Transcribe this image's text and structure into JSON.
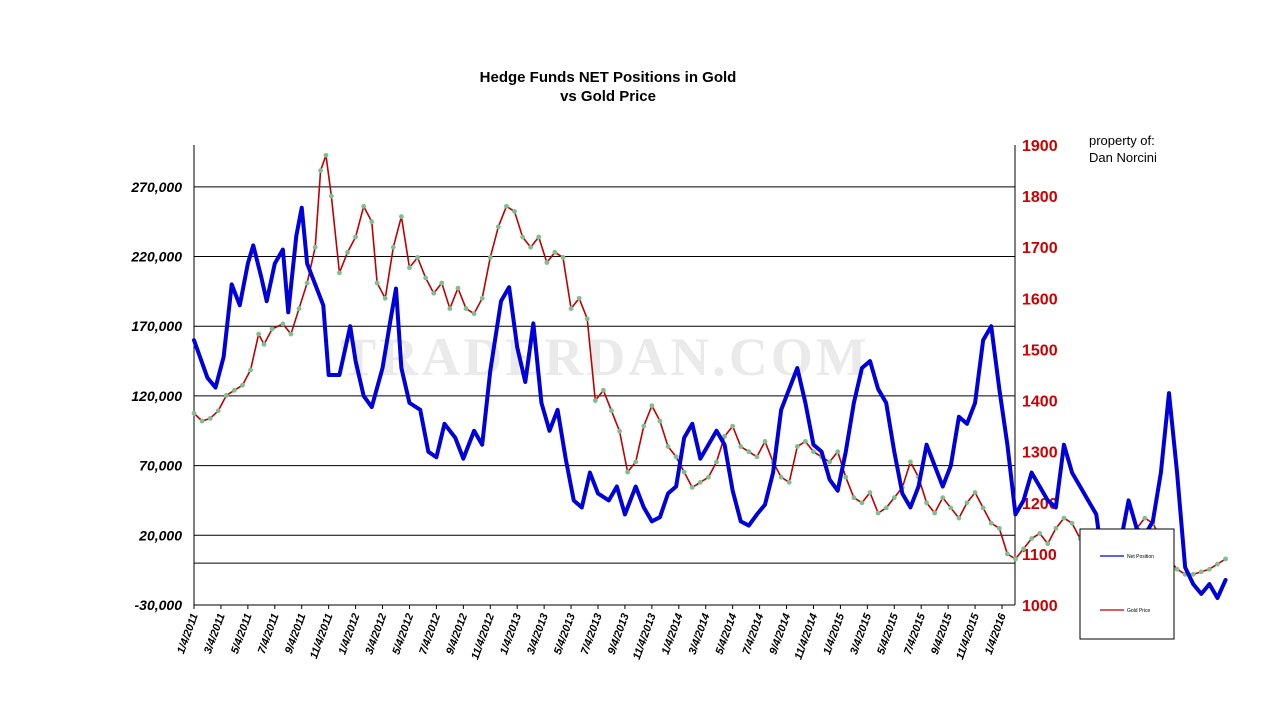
{
  "chart_data": {
    "type": "line",
    "title": "Hedge Funds NET Positions in Gold",
    "subtitle": "vs Gold Price",
    "watermark": "TRADERDAN.COM",
    "note_line1": "property of:",
    "note_line2": "Dan Norcini",
    "x_tick_labels": [
      "1/4/2011",
      "3/4/2011",
      "5/4/2011",
      "7/4/2011",
      "9/4/2011",
      "11/4/2011",
      "1/4/2012",
      "3/4/2012",
      "5/4/2012",
      "7/4/2012",
      "9/4/2012",
      "11/4/2012",
      "1/4/2013",
      "3/4/2013",
      "5/4/2013",
      "7/4/2013",
      "9/4/2013",
      "11/4/2013",
      "1/4/2014",
      "3/4/2014",
      "5/4/2014",
      "7/4/2014",
      "9/4/2014",
      "11/4/2014",
      "1/4/2015",
      "3/4/2015",
      "5/4/2015",
      "7/4/2015",
      "9/4/2015",
      "11/4/2015",
      "1/4/2016"
    ],
    "y_left": {
      "ticks": [
        "270,000",
        "220,000",
        "170,000",
        "120,000",
        "70,000",
        "20,000",
        "-30,000"
      ],
      "tick_values": [
        270000,
        220000,
        170000,
        120000,
        70000,
        20000,
        -30000
      ],
      "range": [
        -30000,
        300000
      ]
    },
    "y_right": {
      "ticks": [
        "1900",
        "1800",
        "1700",
        "1600",
        "1500",
        "1400",
        "1300",
        "1200",
        "1100",
        "1000"
      ],
      "tick_values": [
        1900,
        1800,
        1700,
        1600,
        1500,
        1400,
        1300,
        1200,
        1100,
        1000
      ],
      "range": [
        1000,
        1900
      ]
    },
    "gridlines_left": [
      270000,
      220000,
      170000,
      120000,
      70000,
      20000,
      0
    ],
    "series": [
      {
        "name": "Net Position",
        "color": "#0000dd",
        "axis": "left",
        "values": [
          [
            0,
            160000
          ],
          [
            0.5,
            133000
          ],
          [
            0.8,
            126000
          ],
          [
            1.1,
            148000
          ],
          [
            1.4,
            200000
          ],
          [
            1.7,
            185000
          ],
          [
            2.0,
            215000
          ],
          [
            2.2,
            228000
          ],
          [
            2.5,
            205000
          ],
          [
            2.7,
            188000
          ],
          [
            3.0,
            215000
          ],
          [
            3.3,
            225000
          ],
          [
            3.5,
            180000
          ],
          [
            3.8,
            235000
          ],
          [
            4.0,
            255000
          ],
          [
            4.2,
            215000
          ],
          [
            4.5,
            200000
          ],
          [
            4.8,
            185000
          ],
          [
            5.0,
            135000
          ],
          [
            5.4,
            135000
          ],
          [
            5.8,
            170000
          ],
          [
            6.0,
            145000
          ],
          [
            6.3,
            120000
          ],
          [
            6.6,
            112000
          ],
          [
            7.0,
            140000
          ],
          [
            7.3,
            175000
          ],
          [
            7.5,
            197000
          ],
          [
            7.7,
            140000
          ],
          [
            8.0,
            115000
          ],
          [
            8.4,
            110000
          ],
          [
            8.7,
            80000
          ],
          [
            9.0,
            76000
          ],
          [
            9.3,
            100000
          ],
          [
            9.7,
            90000
          ],
          [
            10.0,
            75000
          ],
          [
            10.4,
            95000
          ],
          [
            10.7,
            85000
          ],
          [
            11.0,
            138000
          ],
          [
            11.4,
            188000
          ],
          [
            11.7,
            198000
          ],
          [
            12.0,
            155000
          ],
          [
            12.3,
            130000
          ],
          [
            12.6,
            172000
          ],
          [
            12.9,
            115000
          ],
          [
            13.2,
            95000
          ],
          [
            13.5,
            110000
          ],
          [
            13.8,
            75000
          ],
          [
            14.1,
            45000
          ],
          [
            14.4,
            40000
          ],
          [
            14.7,
            65000
          ],
          [
            15.0,
            50000
          ],
          [
            15.4,
            45000
          ],
          [
            15.7,
            55000
          ],
          [
            16.0,
            35000
          ],
          [
            16.4,
            55000
          ],
          [
            16.7,
            40000
          ],
          [
            17.0,
            30000
          ],
          [
            17.3,
            33000
          ],
          [
            17.6,
            50000
          ],
          [
            17.9,
            55000
          ],
          [
            18.2,
            90000
          ],
          [
            18.5,
            100000
          ],
          [
            18.8,
            75000
          ],
          [
            19.1,
            85000
          ],
          [
            19.4,
            95000
          ],
          [
            19.7,
            85000
          ],
          [
            20.0,
            52000
          ],
          [
            20.3,
            30000
          ],
          [
            20.6,
            27000
          ],
          [
            20.9,
            35000
          ],
          [
            21.2,
            42000
          ],
          [
            21.5,
            65000
          ],
          [
            21.8,
            110000
          ],
          [
            22.1,
            125000
          ],
          [
            22.4,
            140000
          ],
          [
            22.7,
            115000
          ],
          [
            23.0,
            85000
          ],
          [
            23.3,
            80000
          ],
          [
            23.6,
            60000
          ],
          [
            23.9,
            52000
          ],
          [
            24.2,
            80000
          ],
          [
            24.5,
            115000
          ],
          [
            24.8,
            140000
          ],
          [
            25.1,
            145000
          ],
          [
            25.4,
            125000
          ],
          [
            25.7,
            115000
          ],
          [
            26.0,
            80000
          ],
          [
            26.3,
            50000
          ],
          [
            26.6,
            40000
          ],
          [
            26.9,
            55000
          ],
          [
            27.2,
            85000
          ],
          [
            27.5,
            70000
          ],
          [
            27.8,
            55000
          ],
          [
            28.1,
            70000
          ],
          [
            28.4,
            105000
          ],
          [
            28.7,
            100000
          ],
          [
            29.0,
            115000
          ],
          [
            29.3,
            160000
          ],
          [
            29.6,
            170000
          ],
          [
            29.9,
            125000
          ],
          [
            30.2,
            85000
          ],
          [
            30.5,
            35000
          ],
          [
            30.8,
            45000
          ],
          [
            31.1,
            65000
          ],
          [
            31.4,
            55000
          ],
          [
            31.7,
            45000
          ],
          [
            32.0,
            40000
          ],
          [
            32.3,
            85000
          ],
          [
            32.6,
            65000
          ],
          [
            32.9,
            55000
          ],
          [
            33.2,
            45000
          ],
          [
            33.5,
            35000
          ],
          [
            33.8,
            -8000
          ],
          [
            34.1,
            -3000
          ],
          [
            34.4,
            15000
          ],
          [
            34.7,
            45000
          ],
          [
            35.0,
            25000
          ],
          [
            35.3,
            20000
          ],
          [
            35.6,
            30000
          ],
          [
            35.9,
            65000
          ],
          [
            36.2,
            122000
          ],
          [
            36.5,
            65000
          ],
          [
            36.8,
            -3000
          ],
          [
            37.1,
            -15000
          ],
          [
            37.4,
            -22000
          ],
          [
            37.7,
            -15000
          ],
          [
            38.0,
            -25000
          ],
          [
            38.3,
            -12000
          ]
        ]
      },
      {
        "name": "Gold Price",
        "color": "#c00000",
        "axis": "right",
        "values": [
          [
            0,
            1375
          ],
          [
            0.3,
            1360
          ],
          [
            0.6,
            1365
          ],
          [
            0.9,
            1380
          ],
          [
            1.2,
            1410
          ],
          [
            1.5,
            1420
          ],
          [
            1.8,
            1430
          ],
          [
            2.1,
            1460
          ],
          [
            2.4,
            1530
          ],
          [
            2.6,
            1510
          ],
          [
            2.9,
            1540
          ],
          [
            3.3,
            1550
          ],
          [
            3.6,
            1530
          ],
          [
            3.9,
            1580
          ],
          [
            4.2,
            1630
          ],
          [
            4.5,
            1700
          ],
          [
            4.7,
            1850
          ],
          [
            4.9,
            1880
          ],
          [
            5.1,
            1800
          ],
          [
            5.4,
            1650
          ],
          [
            5.7,
            1690
          ],
          [
            6.0,
            1720
          ],
          [
            6.3,
            1780
          ],
          [
            6.6,
            1750
          ],
          [
            6.8,
            1630
          ],
          [
            7.1,
            1600
          ],
          [
            7.4,
            1700
          ],
          [
            7.7,
            1760
          ],
          [
            8.0,
            1660
          ],
          [
            8.3,
            1680
          ],
          [
            8.6,
            1640
          ],
          [
            8.9,
            1610
          ],
          [
            9.2,
            1630
          ],
          [
            9.5,
            1580
          ],
          [
            9.8,
            1620
          ],
          [
            10.1,
            1580
          ],
          [
            10.4,
            1570
          ],
          [
            10.7,
            1600
          ],
          [
            11.0,
            1680
          ],
          [
            11.3,
            1740
          ],
          [
            11.6,
            1780
          ],
          [
            11.9,
            1770
          ],
          [
            12.2,
            1720
          ],
          [
            12.5,
            1700
          ],
          [
            12.8,
            1720
          ],
          [
            13.1,
            1670
          ],
          [
            13.4,
            1690
          ],
          [
            13.7,
            1680
          ],
          [
            14.0,
            1580
          ],
          [
            14.3,
            1600
          ],
          [
            14.6,
            1560
          ],
          [
            14.9,
            1400
          ],
          [
            15.2,
            1420
          ],
          [
            15.5,
            1380
          ],
          [
            15.8,
            1340
          ],
          [
            16.1,
            1260
          ],
          [
            16.4,
            1280
          ],
          [
            16.7,
            1350
          ],
          [
            17.0,
            1390
          ],
          [
            17.3,
            1360
          ],
          [
            17.6,
            1310
          ],
          [
            17.9,
            1290
          ],
          [
            18.2,
            1260
          ],
          [
            18.5,
            1230
          ],
          [
            18.8,
            1240
          ],
          [
            19.1,
            1250
          ],
          [
            19.4,
            1280
          ],
          [
            19.7,
            1330
          ],
          [
            20.0,
            1350
          ],
          [
            20.3,
            1310
          ],
          [
            20.6,
            1300
          ],
          [
            20.9,
            1290
          ],
          [
            21.2,
            1320
          ],
          [
            21.5,
            1280
          ],
          [
            21.8,
            1250
          ],
          [
            22.1,
            1240
          ],
          [
            22.4,
            1310
          ],
          [
            22.7,
            1320
          ],
          [
            23.0,
            1300
          ],
          [
            23.3,
            1290
          ],
          [
            23.6,
            1280
          ],
          [
            23.9,
            1300
          ],
          [
            24.2,
            1250
          ],
          [
            24.5,
            1210
          ],
          [
            24.8,
            1200
          ],
          [
            25.1,
            1220
          ],
          [
            25.4,
            1180
          ],
          [
            25.7,
            1190
          ],
          [
            26.0,
            1210
          ],
          [
            26.3,
            1230
          ],
          [
            26.6,
            1280
          ],
          [
            26.9,
            1250
          ],
          [
            27.2,
            1200
          ],
          [
            27.5,
            1180
          ],
          [
            27.8,
            1210
          ],
          [
            28.1,
            1190
          ],
          [
            28.4,
            1170
          ],
          [
            28.7,
            1200
          ],
          [
            29.0,
            1220
          ],
          [
            29.3,
            1190
          ],
          [
            29.6,
            1160
          ],
          [
            29.9,
            1150
          ],
          [
            30.2,
            1100
          ],
          [
            30.5,
            1090
          ],
          [
            30.8,
            1110
          ],
          [
            31.1,
            1130
          ],
          [
            31.4,
            1140
          ],
          [
            31.7,
            1120
          ],
          [
            32.0,
            1150
          ],
          [
            32.3,
            1170
          ],
          [
            32.6,
            1160
          ],
          [
            32.9,
            1130
          ],
          [
            33.2,
            1100
          ],
          [
            33.5,
            1080
          ],
          [
            33.8,
            1090
          ],
          [
            34.1,
            1110
          ],
          [
            34.4,
            1140
          ],
          [
            34.7,
            1130
          ],
          [
            35.0,
            1150
          ],
          [
            35.3,
            1170
          ],
          [
            35.6,
            1160
          ],
          [
            35.9,
            1130
          ],
          [
            36.2,
            1090
          ],
          [
            36.5,
            1070
          ],
          [
            36.8,
            1060
          ],
          [
            37.1,
            1060
          ],
          [
            37.4,
            1065
          ],
          [
            37.7,
            1070
          ],
          [
            38.0,
            1080
          ],
          [
            38.3,
            1090
          ]
        ]
      }
    ],
    "legend": [
      {
        "label": "Net Position",
        "color": "#0000dd"
      },
      {
        "label": "Gold Price",
        "color": "#c00000"
      }
    ],
    "colors": {
      "net_line": "#0000dd",
      "gold_line": "#c00000",
      "gold_marker": "#7fbf8f",
      "right_axis": "#cc0000"
    }
  }
}
